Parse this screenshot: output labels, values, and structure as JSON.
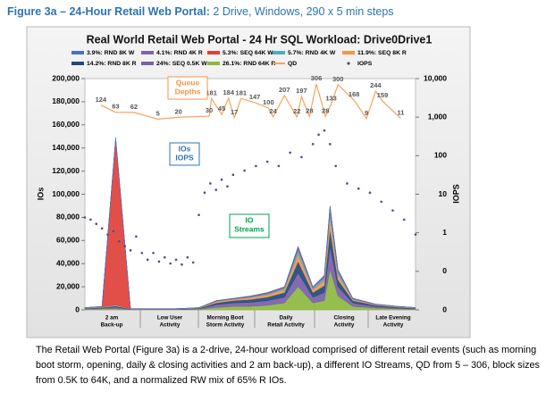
{
  "figure_title": "Figure 3a – 24-Hour Retail Web Portal:",
  "figure_subtitle": "2 Drive, Windows, 290 x 5 min steps",
  "caption": "The Retail Web Portal (Figure 3a) is a 2-drive, 24-hour workload comprised of different retail events (such as morning boot storm, opening, daily & closing activities and 2 am back-up), a different IO Streams, QD from 5 – 306, block sizes from 0.5K to 64K, and a normalized RW mix of 65% R IOs.",
  "chart_data": {
    "type": "combo",
    "title": "Real World Retail Web Portal - 24 Hr SQL Workload: Drive0Drive1",
    "ylabel": "IOs",
    "y2label": "IOPS",
    "xlim": [
      0,
      290
    ],
    "ylim": [
      0,
      200000
    ],
    "yticks": [
      0,
      {
        "value": 20000,
        "label": "20,000"
      },
      {
        "value": 40000,
        "label": "40,000"
      },
      {
        "value": 60000,
        "label": "60,000"
      },
      {
        "value": 80000,
        "label": "80,000"
      },
      {
        "value": 100000,
        "label": "100,000"
      },
      {
        "value": 120000,
        "label": "120,000"
      },
      {
        "value": 140000,
        "label": "140,000"
      },
      {
        "value": 160000,
        "label": "160,000"
      },
      {
        "value": 180000,
        "label": "180,000"
      },
      {
        "value": 200000,
        "label": "200,000"
      }
    ],
    "y2scale": "log",
    "y2lim": [
      0.01,
      10000
    ],
    "y2ticks": [
      {
        "value": 10000,
        "label": "10,000"
      },
      {
        "value": 1000,
        "label": "1,000"
      },
      100,
      10,
      1,
      {
        "value": 0.1,
        "label": "0"
      },
      {
        "value": 0.01,
        "label": "0"
      }
    ],
    "grid": false,
    "segments": [
      [
        "2 am",
        "Back-up"
      ],
      [
        "Low User",
        "Activity"
      ],
      [
        "Morning Boot",
        "Storm Activity"
      ],
      [
        "Daily",
        "Retail Activity"
      ],
      [
        "Closing",
        "Activity"
      ],
      [
        "Late Evening",
        "Activity"
      ]
    ],
    "annotations": [
      [
        "Queue",
        "Depths"
      ],
      [
        "IOs",
        "IOPS"
      ],
      [
        "IO",
        "Streams"
      ]
    ],
    "x": [
      0,
      15,
      27,
      40,
      60,
      80,
      100,
      115,
      130,
      145,
      160,
      175,
      187,
      200,
      210,
      215,
      222,
      235,
      255,
      275,
      290
    ],
    "series": [
      {
        "name": "3.9%: RND 8K W",
        "kind": "area",
        "color": "#4472c4",
        "values": [
          100,
          100,
          300,
          0,
          0,
          0,
          100,
          100,
          100,
          100,
          200,
          200,
          500,
          200,
          500,
          500,
          500,
          100,
          0,
          0,
          0
        ]
      },
      {
        "name": "4.1%: RND 4K R",
        "kind": "area",
        "color": "#8064a2",
        "values": [
          100,
          100,
          300,
          0,
          0,
          0,
          100,
          200,
          200,
          300,
          300,
          300,
          1000,
          300,
          500,
          1500,
          500,
          200,
          100,
          100,
          0
        ]
      },
      {
        "name": "5.3%: SEQ 64K W",
        "kind": "area",
        "color": "#e0403a",
        "values": [
          100,
          200,
          144000,
          100,
          100,
          100,
          100,
          200,
          200,
          300,
          500,
          500,
          1500,
          500,
          1000,
          2000,
          1000,
          300,
          100,
          100,
          100
        ]
      },
      {
        "name": "5.7%: RND 4K W",
        "kind": "area",
        "color": "#4bacc6",
        "values": [
          200,
          300,
          500,
          100,
          100,
          100,
          200,
          500,
          500,
          800,
          1000,
          1500,
          4000,
          1500,
          3000,
          6000,
          3000,
          500,
          300,
          200,
          200
        ]
      },
      {
        "name": "11.9%: SEQ 8K R",
        "kind": "area",
        "color": "#f79646",
        "values": [
          200,
          300,
          500,
          100,
          100,
          100,
          200,
          1000,
          1000,
          1500,
          2000,
          2500,
          6000,
          2500,
          4000,
          10000,
          4000,
          1000,
          500,
          400,
          300
        ]
      },
      {
        "name": "14.2%: RND 8K R",
        "kind": "area",
        "color": "#1f497d",
        "values": [
          300,
          400,
          800,
          200,
          200,
          200,
          300,
          1500,
          2000,
          2500,
          3000,
          4000,
          10000,
          4000,
          6000,
          15000,
          6000,
          2000,
          1000,
          600,
          400
        ]
      },
      {
        "name": "24%: SEQ 0.5K W",
        "kind": "area",
        "color": "#7a5ea8",
        "values": [
          500,
          800,
          1500,
          300,
          300,
          300,
          500,
          2500,
          3000,
          3500,
          4000,
          5000,
          12000,
          5000,
          7000,
          20000,
          8000,
          3000,
          1500,
          800,
          500
        ]
      },
      {
        "name": "26.1%: RND 64K R",
        "kind": "area",
        "color": "#8db83f",
        "values": [
          500,
          800,
          1000,
          200,
          200,
          200,
          500,
          2000,
          3000,
          3000,
          4000,
          6000,
          20000,
          6000,
          8000,
          35000,
          12000,
          3000,
          1500,
          800,
          500
        ]
      },
      {
        "name": "QD",
        "kind": "line",
        "color": "#f7a35c",
        "x": [
          14,
          27,
          43,
          64,
          82,
          109,
          111,
          120,
          126,
          131,
          137,
          149,
          161,
          165,
          175,
          186,
          190,
          197,
          203,
          211,
          216,
          222,
          236,
          247,
          255,
          261,
          277
        ],
        "values": [
          124,
          63,
          62,
          5,
          20,
          30,
          181,
          45,
          184,
          17,
          181,
          147,
          100,
          24,
          207,
          22,
          197,
          28,
          306,
          28,
          133,
          300,
          168,
          9,
          244,
          159,
          11
        ]
      },
      {
        "name": "IOPS",
        "kind": "scatter",
        "axis": "y2",
        "color": "#4b4b8f",
        "x": [
          0,
          5,
          10,
          15,
          20,
          25,
          30,
          35,
          40,
          45,
          50,
          55,
          60,
          65,
          70,
          75,
          80,
          85,
          90,
          95,
          100,
          105,
          110,
          115,
          120,
          125,
          130,
          140,
          150,
          160,
          170,
          180,
          190,
          200,
          205,
          210,
          215,
          220,
          230,
          240,
          250,
          260,
          270,
          280,
          290
        ],
        "values": [
          2.5,
          2.2,
          1.7,
          1.3,
          0.9,
          1.1,
          0.6,
          0.45,
          0.35,
          0.8,
          0.3,
          0.2,
          0.3,
          0.18,
          0.23,
          0.16,
          0.2,
          0.15,
          0.23,
          0.17,
          2.9,
          11,
          19,
          13,
          24,
          16,
          32,
          41,
          54,
          70,
          54,
          120,
          92,
          200,
          350,
          450,
          200,
          54,
          19,
          14,
          11,
          6.4,
          3.8,
          2.2,
          0.9
        ]
      }
    ]
  }
}
